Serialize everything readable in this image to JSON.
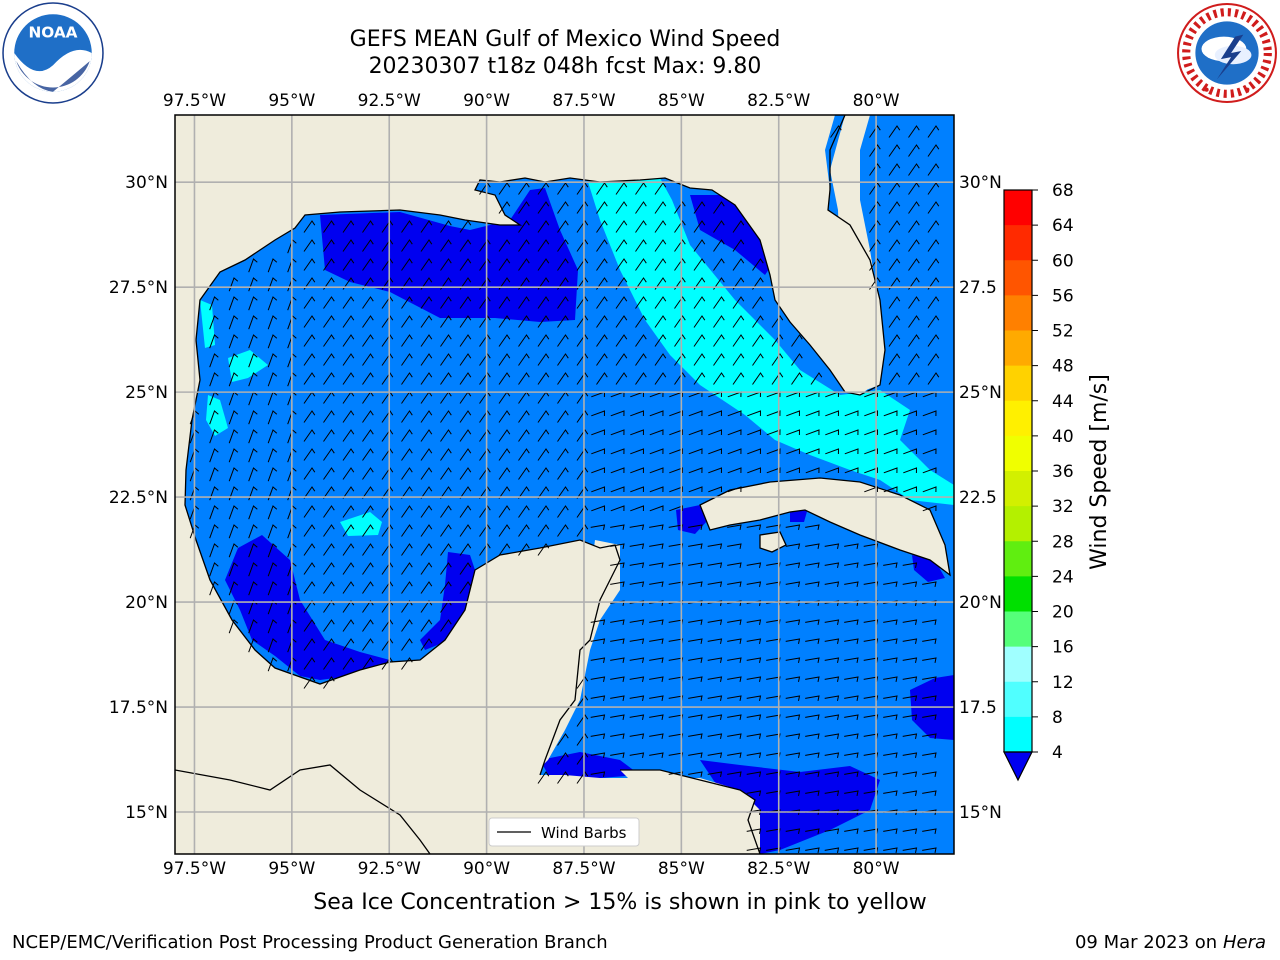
{
  "header": {
    "title_line1": "GEFS MEAN Gulf of Mexico Wind Speed",
    "title_line2": "20230307 t18z 048h fcst   Max: 9.80"
  },
  "logos": {
    "left_name": "noaa-logo",
    "left_text": "NOAA",
    "right_name": "nws-logo"
  },
  "map": {
    "lon_ticks": [
      "97.5°W",
      "95°W",
      "92.5°W",
      "90°W",
      "87.5°W",
      "85°W",
      "82.5°W",
      "80°W"
    ],
    "lat_ticks": [
      "30°N",
      "27.5°N",
      "25°N",
      "22.5°N",
      "20°N",
      "17.5°N",
      "15°N"
    ],
    "lat_ticks_right": [
      "30°N",
      "27.5",
      "25°N",
      "22.5",
      "20°N",
      "17.5",
      "15°N"
    ],
    "lon_values": [
      -97.5,
      -95,
      -92.5,
      -90,
      -87.5,
      -85,
      -82.5,
      -80
    ],
    "lat_values": [
      30,
      27.5,
      25,
      22.5,
      20,
      17.5,
      15
    ],
    "extent": {
      "lon_min": -98,
      "lon_max": -78,
      "lat_min": 14,
      "lat_max": 31.6
    },
    "legend_label": "Wind Barbs",
    "colors": {
      "land": "#efecdc",
      "level_4_8": "#0080ff",
      "level_lt4": "#0000f0",
      "level_8_12": "#00ffff",
      "gridline": "#b0b0b0"
    }
  },
  "colorbar": {
    "label": "Wind Speed [m/s]",
    "ticks": [
      "68",
      "64",
      "60",
      "56",
      "52",
      "48",
      "44",
      "40",
      "36",
      "32",
      "28",
      "24",
      "20",
      "16",
      "12",
      "8",
      "4"
    ],
    "colors": [
      "#ff0000",
      "#ff2a00",
      "#ff5500",
      "#ff8000",
      "#ffaa00",
      "#ffd200",
      "#fff000",
      "#f0ff00",
      "#d2f000",
      "#b4f000",
      "#60ee10",
      "#00e000",
      "#55ff7a",
      "#a0ffff",
      "#50ffff",
      "#00ffff",
      "#0080ff"
    ],
    "under_color": "#0000f0"
  },
  "note": "Sea Ice Concentration > 15% is shown in pink to yellow",
  "footer": {
    "left": "NCEP/EMC/Verification Post Processing Product Generation Branch",
    "right_date": "09 Mar 2023 on",
    "right_host": "Hera"
  }
}
